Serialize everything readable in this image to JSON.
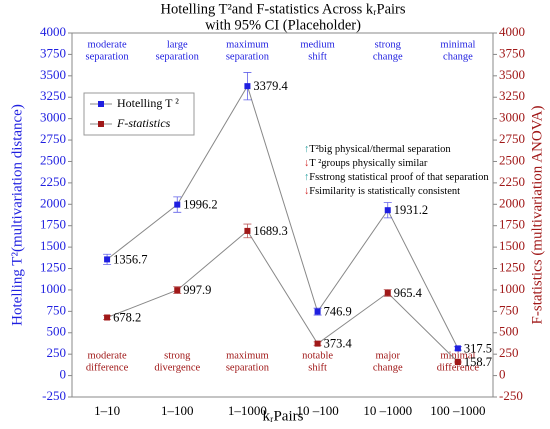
{
  "chart_data": {
    "type": "line",
    "title": "Hotelling T²and  F-statistics Across kᵣPairs",
    "subtitle": "with 95% CI (Placeholder)",
    "x_label": "kᵣPairs",
    "y_label": "Hotelling T²(multivariation distance)",
    "y2_label": "F-statistics (multivariation ANOVA)",
    "categories": [
      "1–10",
      "1–100",
      "1–1000",
      "10 –100",
      "10 –1000",
      "100 –1000"
    ],
    "series": [
      {
        "name": "Hotelling T ²",
        "color": "#1f1fe0",
        "values": [
          1356.7,
          1996.2,
          3379.4,
          746.9,
          1931.2,
          317.5
        ],
        "errors": [
          60,
          90,
          160,
          40,
          90,
          20
        ]
      },
      {
        "name": "F-statistics",
        "color": "#a01818",
        "axis": "y2",
        "values": [
          678.2,
          997.9,
          1689.3,
          373.4,
          965.4,
          158.7
        ],
        "errors": [
          25,
          40,
          80,
          20,
          40,
          10
        ]
      }
    ],
    "ylim": [
      -250,
      4000
    ],
    "yticks": [
      -250,
      0,
      250,
      500,
      750,
      1000,
      1250,
      1500,
      1750,
      2000,
      2250,
      2500,
      2750,
      3000,
      3250,
      3500,
      3750,
      4000
    ],
    "y2lim": [
      -250,
      4000
    ],
    "y2ticks": [
      -250,
      0,
      250,
      500,
      750,
      1000,
      1250,
      1500,
      1750,
      2000,
      2250,
      2500,
      2750,
      3000,
      3250,
      3500,
      3750,
      4000
    ],
    "top_annotations": [
      [
        "moderate",
        "separation"
      ],
      [
        "large",
        "separation"
      ],
      [
        "maximum",
        "separation"
      ],
      [
        "medium",
        "shift"
      ],
      [
        "strong",
        "change"
      ],
      [
        "minimal",
        "change"
      ]
    ],
    "bottom_annotations": [
      [
        "moderate",
        "difference"
      ],
      [
        "strong",
        "divergence"
      ],
      [
        "maximum",
        "separation"
      ],
      [
        "notable",
        "shift"
      ],
      [
        "major",
        "change"
      ],
      [
        "minimal",
        "difference"
      ]
    ],
    "notes": [
      {
        "arrow": "↑",
        "text": "T²big physical/thermal separation"
      },
      {
        "arrow": "↓",
        "text": "T ²groups physically similar"
      },
      {
        "arrow": "↑",
        "text": "Fsstrong statistical proof of that separation"
      },
      {
        "arrow": "↓",
        "text": "Fsimilarity is statistically consistent"
      }
    ]
  }
}
